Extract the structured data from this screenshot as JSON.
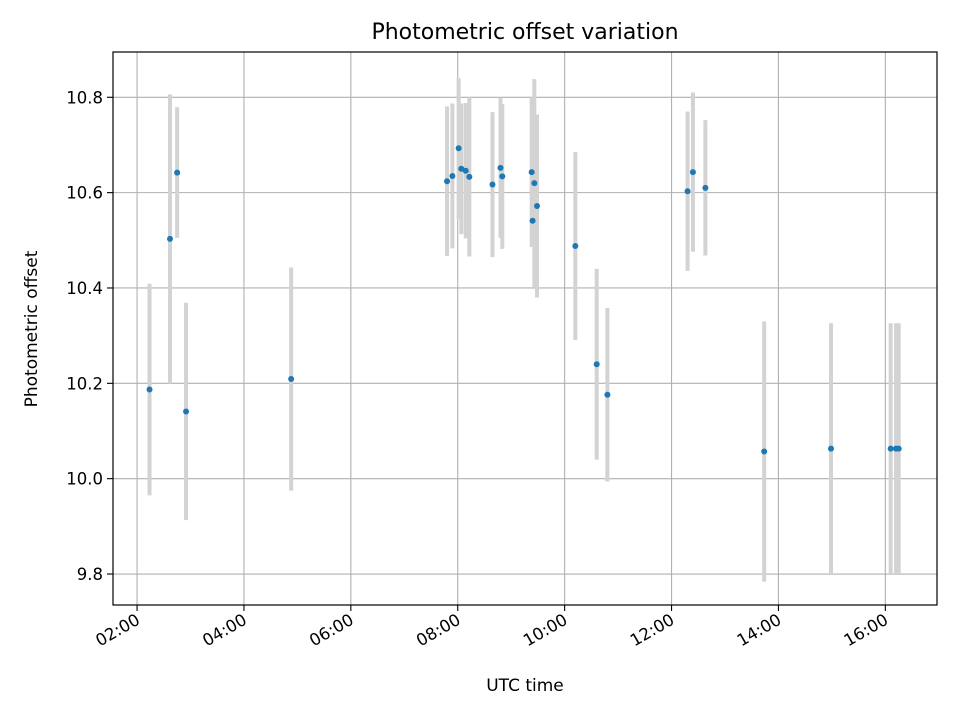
{
  "chart_data": {
    "type": "scatter",
    "title": "Photometric offset variation",
    "xlabel": "UTC time",
    "ylabel": "Photometric offset",
    "x_ticks": [
      "02:00",
      "04:00",
      "06:00",
      "08:00",
      "10:00",
      "12:00",
      "14:00",
      "16:00"
    ],
    "y_ticks": [
      "9.8",
      "10.0",
      "10.2",
      "10.4",
      "10.6",
      "10.8"
    ],
    "xlim": [
      "01:33",
      "16:58"
    ],
    "ylim": [
      9.735,
      10.895
    ],
    "grid": true,
    "colors": {
      "points": "#1f77b4",
      "errorbars": "#d3d3d3"
    },
    "series": [
      {
        "points": [
          {
            "x": "02:14",
            "y": 10.187,
            "yerr": 0.222
          },
          {
            "x": "02:37",
            "y": 10.503,
            "yerr": 0.303
          },
          {
            "x": "02:45",
            "y": 10.642,
            "yerr": 0.137
          },
          {
            "x": "02:55",
            "y": 10.141,
            "yerr": 0.228
          },
          {
            "x": "04:53",
            "y": 10.209,
            "yerr": 0.234
          },
          {
            "x": "07:48",
            "y": 10.624,
            "yerr": 0.157
          },
          {
            "x": "07:54",
            "y": 10.635,
            "yerr": 0.152
          },
          {
            "x": "08:01",
            "y": 10.693,
            "yerr": 0.147
          },
          {
            "x": "08:04",
            "y": 10.65,
            "yerr": 0.137
          },
          {
            "x": "08:09",
            "y": 10.646,
            "yerr": 0.142
          },
          {
            "x": "08:13",
            "y": 10.633,
            "yerr": 0.167
          },
          {
            "x": "08:39",
            "y": 10.617,
            "yerr": 0.152
          },
          {
            "x": "08:48",
            "y": 10.652,
            "yerr": 0.147
          },
          {
            "x": "08:50",
            "y": 10.634,
            "yerr": 0.152
          },
          {
            "x": "09:23",
            "y": 10.643,
            "yerr": 0.157
          },
          {
            "x": "09:24",
            "y": 10.541,
            "yerr": 0.053
          },
          {
            "x": "09:26",
            "y": 10.62,
            "yerr": 0.218
          },
          {
            "x": "09:29",
            "y": 10.572,
            "yerr": 0.192
          },
          {
            "x": "10:12",
            "y": 10.488,
            "yerr": 0.197
          },
          {
            "x": "10:36",
            "y": 10.24,
            "yerr": 0.2
          },
          {
            "x": "10:48",
            "y": 10.176,
            "yerr": 0.182
          },
          {
            "x": "12:18",
            "y": 10.603,
            "yerr": 0.167
          },
          {
            "x": "12:24",
            "y": 10.643,
            "yerr": 0.167
          },
          {
            "x": "12:38",
            "y": 10.61,
            "yerr": 0.142
          },
          {
            "x": "13:44",
            "y": 10.057,
            "yerr": 0.273
          },
          {
            "x": "14:59",
            "y": 10.063,
            "yerr": 0.263
          },
          {
            "x": "16:06",
            "y": 10.063,
            "yerr": 0.263
          },
          {
            "x": "16:12",
            "y": 10.063,
            "yerr": 0.263
          },
          {
            "x": "16:15",
            "y": 10.063,
            "yerr": 0.263
          }
        ]
      }
    ]
  }
}
